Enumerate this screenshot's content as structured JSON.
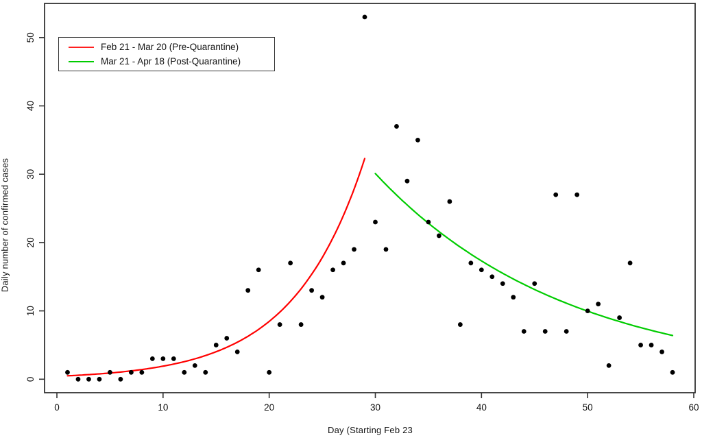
{
  "figure": {
    "x_axis_label": "Day (Starting Feb 23",
    "y_axis_label": "Daily number of confirmed cases"
  },
  "legend": {
    "position": "top-left",
    "entries": [
      {
        "label": "Feb 21 - Mar 20 (Pre-Quarantine)",
        "color": "#ff2020"
      },
      {
        "label": "Mar 21 - Apr 18 (Post-Quarantine)",
        "color": "#00cc00"
      }
    ]
  },
  "chart_data": {
    "type": "scatter",
    "title": "",
    "xlabel": "Day (Starting Feb 23",
    "ylabel": "Daily number of confirmed cases",
    "xlim": [
      0,
      60
    ],
    "ylim": [
      0,
      53
    ],
    "x_ticks": [
      0,
      10,
      20,
      30,
      40,
      50,
      60
    ],
    "y_ticks": [
      0,
      10,
      20,
      30,
      40,
      50
    ],
    "grid": false,
    "point_color": "#000000",
    "x": [
      1,
      2,
      3,
      4,
      5,
      6,
      7,
      8,
      9,
      10,
      11,
      12,
      13,
      14,
      15,
      16,
      17,
      18,
      19,
      20,
      21,
      22,
      23,
      24,
      25,
      26,
      27,
      28,
      29,
      30,
      31,
      32,
      33,
      34,
      35,
      36,
      37,
      38,
      39,
      40,
      41,
      42,
      43,
      44,
      45,
      46,
      47,
      48,
      49,
      50,
      51,
      52,
      53,
      54,
      55,
      56,
      57,
      58
    ],
    "values": [
      1,
      0,
      0,
      0,
      1,
      0,
      1,
      1,
      3,
      3,
      3,
      1,
      2,
      1,
      5,
      6,
      4,
      13,
      16,
      1,
      8,
      17,
      8,
      13,
      12,
      16,
      17,
      19,
      53,
      23,
      19,
      37,
      29,
      35,
      23,
      21,
      26,
      8,
      17,
      16,
      15,
      14,
      12,
      7,
      14,
      7,
      27,
      7,
      27,
      10,
      11,
      2,
      9,
      17,
      5,
      5,
      4,
      1
    ],
    "curves": [
      {
        "name": "pre-quarantine-exponential-fit",
        "color": "#ff0000",
        "type": "exponential",
        "x_start": 1,
        "x_end": 29,
        "y_start": 0.5,
        "y_end": 32.3
      },
      {
        "name": "post-quarantine-exponential-fit",
        "color": "#00cc00",
        "type": "exponential",
        "x_start": 30,
        "x_end": 58,
        "y_start": 30.1,
        "y_end": 6.4
      }
    ]
  }
}
